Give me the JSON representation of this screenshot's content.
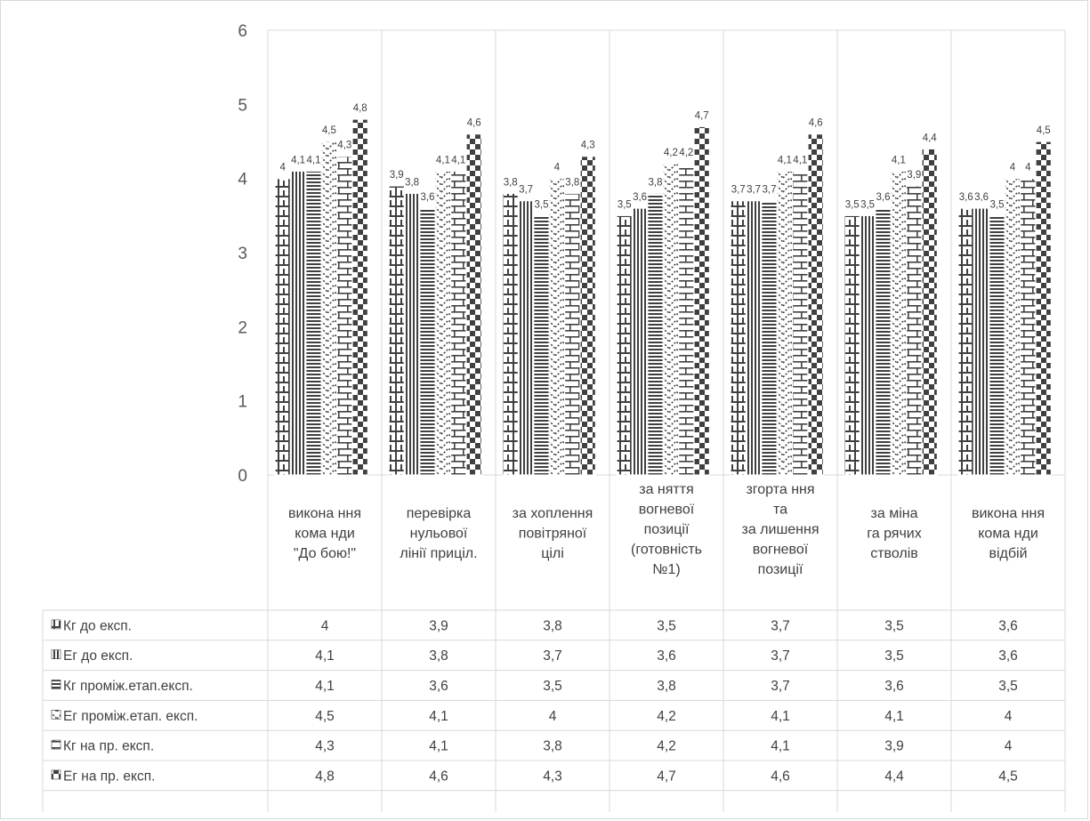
{
  "chart_data": {
    "type": "bar",
    "categories": [
      [
        "викона ння",
        "кома нди",
        "\"До бою!\""
      ],
      [
        "перевірка",
        "нульової",
        "лінії приціл."
      ],
      [
        "за хоплення",
        "повітряної",
        "цілі"
      ],
      [
        "за няття",
        "вогневої",
        "позиції",
        "(готовність",
        "№1)"
      ],
      [
        "згорта ння",
        "та",
        "за лишення",
        "вогневої",
        "позиції"
      ],
      [
        "за міна",
        "га рячих",
        "стволів"
      ],
      [
        "викона ння",
        "кома нди",
        "відбій"
      ]
    ],
    "series": [
      {
        "name": "Кг до експ.",
        "values": [
          4,
          3.9,
          3.8,
          3.5,
          3.7,
          3.5,
          3.6
        ]
      },
      {
        "name": "Ег до експ.",
        "values": [
          4.1,
          3.8,
          3.7,
          3.6,
          3.7,
          3.5,
          3.6
        ]
      },
      {
        "name": "Кг проміж.етап.експ.",
        "values": [
          4.1,
          3.6,
          3.5,
          3.8,
          3.7,
          3.6,
          3.5
        ]
      },
      {
        "name": "Ег проміж.етап. експ.",
        "values": [
          4.5,
          4.1,
          4,
          4.2,
          4.1,
          4.1,
          4
        ]
      },
      {
        "name": "Кг на пр. експ.",
        "values": [
          4.3,
          4.1,
          3.8,
          4.2,
          4.1,
          3.9,
          4
        ]
      },
      {
        "name": "Ег на пр. експ.",
        "values": [
          4.8,
          4.6,
          4.3,
          4.7,
          4.6,
          4.4,
          4.5
        ]
      }
    ],
    "ylim": [
      0,
      6
    ],
    "yticks": [
      "0",
      "1",
      "2",
      "3",
      "4",
      "5",
      "6"
    ],
    "data_labels": "shown with comma decimal separator",
    "legend": "data table below chart",
    "grid": "vertical category separators",
    "colors": {
      "ink": "#404040",
      "axis_text": "#595959",
      "lines": "#d9d9d9"
    }
  }
}
